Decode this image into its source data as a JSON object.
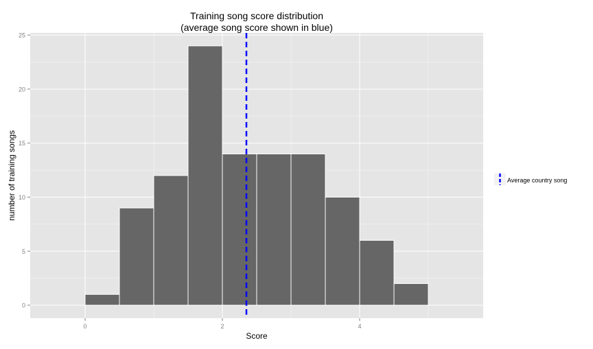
{
  "chart_data": {
    "type": "bar",
    "title": "Training song score distribution",
    "subtitle": "(average song score shown in blue)",
    "xlabel": "Score",
    "ylabel": "number of training songs",
    "xlim": [
      -0.8,
      5.8
    ],
    "ylim": [
      -1.2,
      25.2
    ],
    "xticks": [
      0,
      2,
      4
    ],
    "yticks": [
      0,
      5,
      10,
      15,
      20,
      25
    ],
    "bin_width": 0.5,
    "bins": [
      {
        "start": 0.0,
        "end": 0.5,
        "count": 1
      },
      {
        "start": 0.5,
        "end": 1.0,
        "count": 9
      },
      {
        "start": 1.0,
        "end": 1.5,
        "count": 12
      },
      {
        "start": 1.5,
        "end": 2.0,
        "count": 24
      },
      {
        "start": 2.0,
        "end": 2.5,
        "count": 14
      },
      {
        "start": 2.5,
        "end": 3.0,
        "count": 14
      },
      {
        "start": 3.0,
        "end": 3.5,
        "count": 14
      },
      {
        "start": 3.5,
        "end": 4.0,
        "count": 10
      },
      {
        "start": 4.0,
        "end": 4.5,
        "count": 6
      },
      {
        "start": 4.5,
        "end": 5.0,
        "count": 2
      }
    ],
    "mean_line": {
      "x": 2.35,
      "color": "#0000ff",
      "style": "dashed"
    },
    "legend": {
      "label": "Average country song",
      "placement": "right"
    },
    "grid": true,
    "colors": {
      "bar": "#666666",
      "bar_edge": "#ffffff",
      "panel": "#e5e5e5",
      "grid": "#ffffff"
    }
  }
}
